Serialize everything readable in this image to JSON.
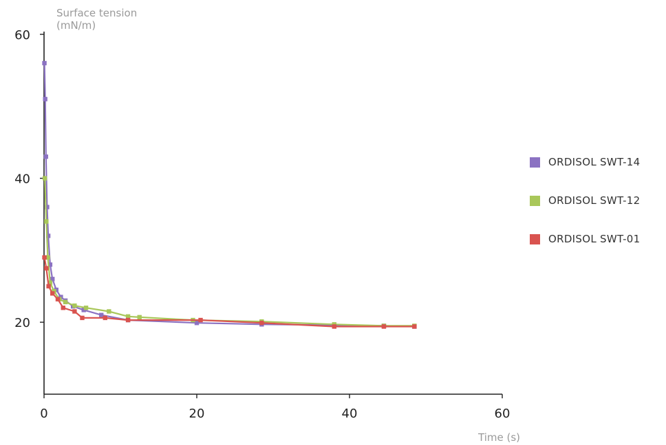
{
  "chart_data": {
    "type": "line",
    "ylabel_line1": "Surface tension",
    "ylabel_line2": "(mN/m)",
    "xlabel": "Time (s)",
    "xlim": [
      0,
      60
    ],
    "ylim": [
      10,
      60
    ],
    "x_ticks": [
      0,
      20,
      40,
      60
    ],
    "y_ticks": [
      20,
      40,
      60
    ],
    "grid": false,
    "legend_position": "right",
    "series": [
      {
        "name": "ORDISOL SWT-14",
        "color": "#8b72c2",
        "points": [
          [
            0.05,
            56
          ],
          [
            0.15,
            51
          ],
          [
            0.25,
            43
          ],
          [
            0.4,
            36
          ],
          [
            0.55,
            32
          ],
          [
            0.8,
            28
          ],
          [
            1.1,
            26
          ],
          [
            1.6,
            24.5
          ],
          [
            2.2,
            23.5
          ],
          [
            2.8,
            23
          ],
          [
            3.8,
            22.2
          ],
          [
            5.2,
            21.7
          ],
          [
            7.5,
            21
          ],
          [
            11,
            20.3
          ],
          [
            20,
            19.9
          ],
          [
            28.5,
            19.7
          ],
          [
            38,
            19.6
          ],
          [
            44.5,
            19.5
          ],
          [
            48.5,
            19.4
          ]
        ]
      },
      {
        "name": "ORDISOL SWT-12",
        "color": "#a9c75a",
        "points": [
          [
            0.1,
            40
          ],
          [
            0.3,
            34
          ],
          [
            0.5,
            29
          ],
          [
            0.8,
            25.5
          ],
          [
            1.3,
            24.3
          ],
          [
            2.0,
            23.2
          ],
          [
            2.8,
            22.8
          ],
          [
            4,
            22.3
          ],
          [
            5.5,
            22
          ],
          [
            8.5,
            21.5
          ],
          [
            11,
            20.8
          ],
          [
            12.5,
            20.7
          ],
          [
            19.5,
            20.3
          ],
          [
            28.5,
            20.1
          ],
          [
            38,
            19.7
          ],
          [
            44.5,
            19.5
          ],
          [
            48.5,
            19.5
          ]
        ]
      },
      {
        "name": "ORDISOL SWT-01",
        "color": "#d9534f",
        "points": [
          [
            0.05,
            29
          ],
          [
            0.3,
            27.5
          ],
          [
            0.6,
            25
          ],
          [
            1.1,
            24
          ],
          [
            1.8,
            23.2
          ],
          [
            2.5,
            22
          ],
          [
            4,
            21.5
          ],
          [
            5,
            20.6
          ],
          [
            8,
            20.6
          ],
          [
            11,
            20.3
          ],
          [
            20.5,
            20.3
          ],
          [
            28.5,
            19.9
          ],
          [
            38,
            19.4
          ],
          [
            44.5,
            19.4
          ],
          [
            48.5,
            19.4
          ]
        ]
      }
    ]
  }
}
